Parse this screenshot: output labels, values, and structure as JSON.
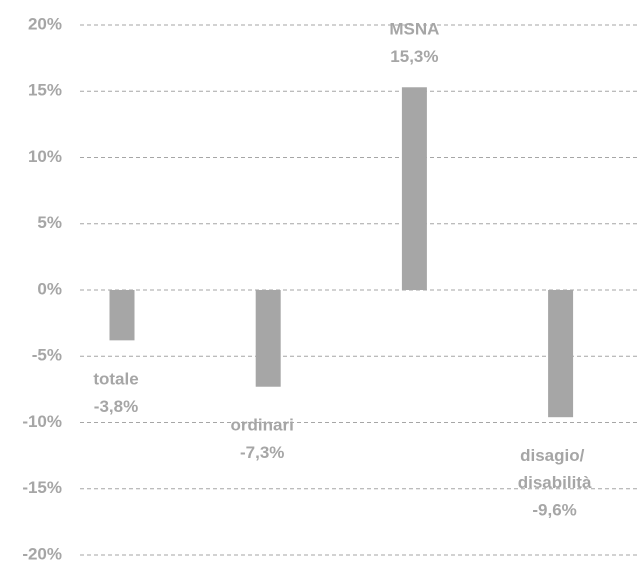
{
  "chart_data": {
    "type": "bar",
    "categories": [
      "totale",
      "ordinari",
      "MSNA",
      "disagio/ disabilità"
    ],
    "values": [
      -3.8,
      -7.3,
      15.3,
      -9.6
    ],
    "value_labels": [
      "-3,8%",
      "-7,3%",
      "15,3%",
      "-9,6%"
    ],
    "color": "#a6a6a6",
    "ylim": [
      -20,
      20
    ],
    "yticks": [
      {
        "value": -20,
        "label": "-20%"
      },
      {
        "value": -15,
        "label": "-15%"
      },
      {
        "value": -10,
        "label": "-10%"
      },
      {
        "value": -5,
        "label": "-5%"
      },
      {
        "value": 0,
        "label": "0%"
      },
      {
        "value": 5,
        "label": "5%"
      },
      {
        "value": 10,
        "label": "10%"
      },
      {
        "value": 15,
        "label": "15%"
      },
      {
        "value": 20,
        "label": "20%"
      }
    ],
    "grid": true
  }
}
